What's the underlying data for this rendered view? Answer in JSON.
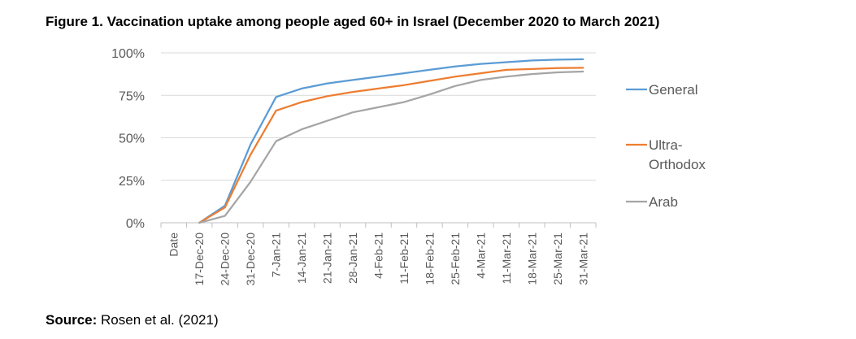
{
  "figure": {
    "title": "Figure 1. Vaccination uptake among people aged 60+ in Israel (December 2020 to March 2021)",
    "source_label": "Source:",
    "source_text": " Rosen et al. (2021)"
  },
  "chart_data": {
    "type": "line",
    "categories": [
      "Date",
      "17-Dec-20",
      "24-Dec-20",
      "31-Dec-20",
      "7-Jan-21",
      "14-Jan-21",
      "21-Jan-21",
      "28-Jan-21",
      "4-Feb-21",
      "11-Feb-21",
      "18-Feb-21",
      "25-Feb-21",
      "4-Mar-21",
      "11-Mar-21",
      "18-Mar-21",
      "25-Mar-21",
      "31-Mar-21"
    ],
    "ylim": [
      0,
      100
    ],
    "yticks": [
      "0%",
      "25%",
      "50%",
      "75%",
      "100%"
    ],
    "grid": true,
    "legend_position": "right",
    "series": [
      {
        "name": "General",
        "legend_lines": [
          "General"
        ],
        "color": "#5B9BD5",
        "values": [
          null,
          0,
          10,
          46,
          74,
          79,
          82,
          84,
          86,
          88,
          90,
          92,
          93.5,
          94.5,
          95.5,
          96,
          96.2
        ]
      },
      {
        "name": "Ultra-Orthodox",
        "legend_lines": [
          "Ultra-",
          "Orthodox"
        ],
        "color": "#ED7D31",
        "values": [
          null,
          0,
          9,
          40,
          66,
          71,
          74.5,
          77,
          79,
          81,
          83.5,
          86,
          88,
          90,
          90.5,
          91,
          91.2
        ]
      },
      {
        "name": "Arab",
        "legend_lines": [
          "Arab"
        ],
        "color": "#A5A5A5",
        "values": [
          null,
          0,
          4,
          24,
          48,
          55,
          60,
          65,
          68,
          71,
          75.5,
          80.5,
          84,
          86,
          87.5,
          88.5,
          89
        ]
      }
    ]
  }
}
